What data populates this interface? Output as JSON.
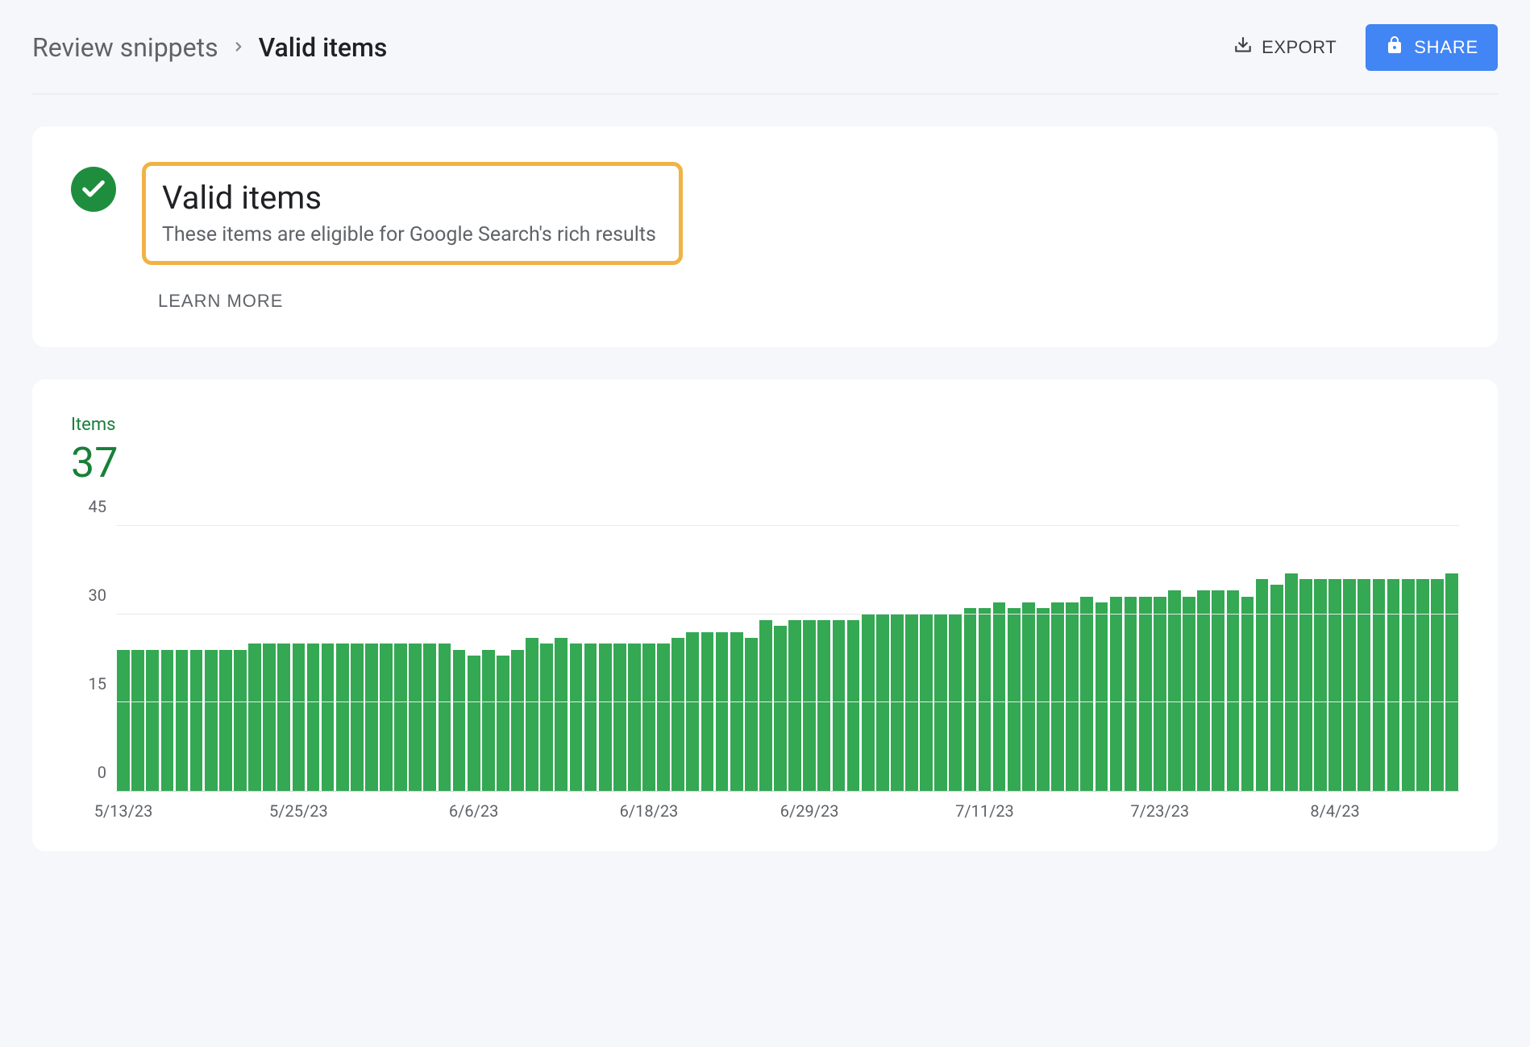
{
  "breadcrumb": {
    "parent": "Review snippets",
    "current": "Valid items"
  },
  "actions": {
    "export_label": "EXPORT",
    "share_label": "SHARE"
  },
  "status_card": {
    "title": "Valid items",
    "subtitle": "These items are eligible for Google Search's rich results",
    "learn_more_label": "LEARN MORE",
    "check_color": "#1e8e3e",
    "highlight_border_color": "#f0b344"
  },
  "chart": {
    "type": "bar",
    "metric_label": "Items",
    "metric_value": "37",
    "metric_color": "#188038",
    "bar_color": "#34a853",
    "grid_color": "#e8eaed",
    "axis_color": "#d0d3d8",
    "text_color": "#5f6368",
    "background_color": "#ffffff",
    "ylim": [
      0,
      45
    ],
    "ytick_step": 15,
    "yticks": [
      0,
      15,
      30,
      45
    ],
    "values": [
      24,
      24,
      24,
      24,
      24,
      24,
      24,
      24,
      24,
      25,
      25,
      25,
      25,
      25,
      25,
      25,
      25,
      25,
      25,
      25,
      25,
      25,
      25,
      24,
      23,
      24,
      23,
      24,
      26,
      25,
      26,
      25,
      25,
      25,
      25,
      25,
      25,
      25,
      26,
      27,
      27,
      27,
      27,
      26,
      29,
      28,
      29,
      29,
      29,
      29,
      29,
      30,
      30,
      30,
      30,
      30,
      30,
      30,
      31,
      31,
      32,
      31,
      32,
      31,
      32,
      32,
      33,
      32,
      33,
      33,
      33,
      33,
      34,
      33,
      34,
      34,
      34,
      33,
      36,
      35,
      37,
      36,
      36,
      36,
      36,
      36,
      36,
      36,
      36,
      36,
      36,
      37
    ],
    "x_tick_indices": [
      0,
      12,
      24,
      36,
      47,
      59,
      71,
      83
    ],
    "x_tick_labels": [
      "5/13/23",
      "5/25/23",
      "6/6/23",
      "6/18/23",
      "6/29/23",
      "7/11/23",
      "7/23/23",
      "8/4/23"
    ]
  },
  "colors": {
    "page_bg": "#f5f7fa",
    "share_button": "#4285f4",
    "text_primary": "#202124",
    "text_secondary": "#5f6368"
  }
}
